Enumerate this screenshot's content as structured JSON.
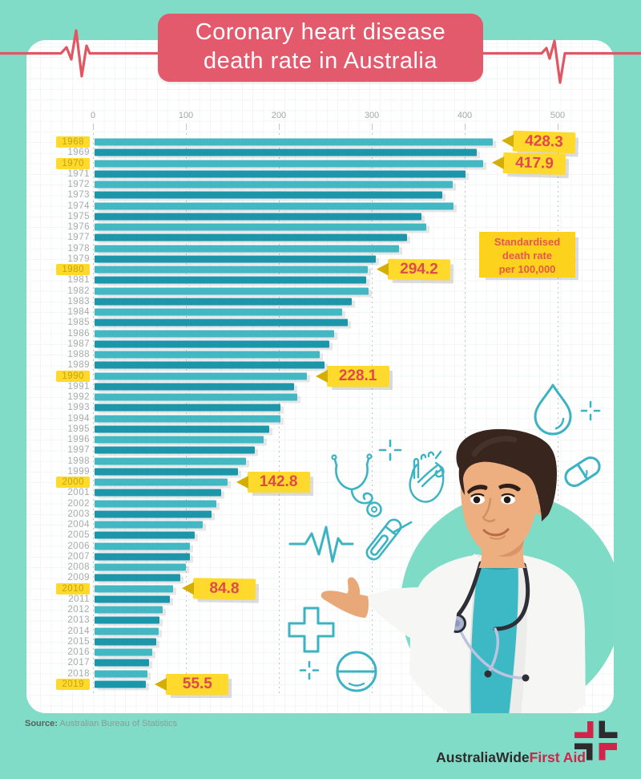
{
  "title": {
    "line1": "Coronary heart disease",
    "line2": "death rate in Australia"
  },
  "chart_data": {
    "type": "bar",
    "orientation": "horizontal",
    "title": "Coronary heart disease death rate in Australia",
    "value_label": "Standardised death rate per 100,000",
    "x_ticks": [
      0,
      100,
      200,
      300,
      400,
      500
    ],
    "xlim": [
      0,
      500
    ],
    "grid": "dashed-vertical",
    "categories": [
      1968,
      1969,
      1970,
      1971,
      1972,
      1973,
      1974,
      1975,
      1976,
      1977,
      1978,
      1979,
      1980,
      1981,
      1982,
      1983,
      1984,
      1985,
      1986,
      1987,
      1988,
      1989,
      1990,
      1991,
      1992,
      1993,
      1994,
      1995,
      1996,
      1997,
      1998,
      1999,
      2000,
      2001,
      2002,
      2003,
      2004,
      2005,
      2006,
      2007,
      2008,
      2009,
      2010,
      2011,
      2012,
      2013,
      2014,
      2015,
      2016,
      2017,
      2018,
      2019
    ],
    "values": [
      428.3,
      411,
      417.9,
      399,
      385,
      374,
      386,
      352,
      357,
      336,
      328,
      303,
      294.2,
      292,
      295,
      277,
      266,
      272,
      258,
      253,
      242,
      247,
      228.1,
      215,
      218,
      200,
      200,
      188,
      182,
      172,
      163,
      154,
      142.8,
      136,
      131,
      126,
      116,
      108,
      103,
      103,
      98,
      92,
      84.8,
      81,
      73,
      70,
      69,
      66,
      62,
      59,
      56.5,
      55.5
    ],
    "highlighted_years": [
      1968,
      1970,
      1980,
      1990,
      2000,
      2010,
      2019
    ],
    "callouts": [
      {
        "year": 1968,
        "label": "428.3"
      },
      {
        "year": 1970,
        "label": "417.9"
      },
      {
        "year": 1980,
        "label": "294.2"
      },
      {
        "year": 1990,
        "label": "228.1"
      },
      {
        "year": 2000,
        "label": "142.8"
      },
      {
        "year": 2010,
        "label": "84.8"
      },
      {
        "year": 2019,
        "label": "55.5"
      }
    ]
  },
  "note": {
    "line1": "Standardised",
    "line2": "death rate",
    "line3": "per 100,000"
  },
  "source": {
    "prefix": "Source:",
    "text": " Australian Bureau of Statistics"
  },
  "logo": {
    "part1": "AustraliaWide",
    "part2": "First Aid"
  },
  "icons": [
    "water-drop-icon",
    "sparkle-plus-icon",
    "pill-capsule-icon",
    "anatomical-heart-icon",
    "stethoscope-icon",
    "heartbeat-line-icon",
    "test-tube-icon",
    "medical-cross-icon",
    "crosshair-icon",
    "tablet-icon",
    "doctor-illustration",
    "heartbeat-ecg-banner",
    "first-aid-cross-logo"
  ],
  "colors": {
    "background": "#80dcc7",
    "card": "#ffffff",
    "title_bg": "#e25a6c",
    "ekg_line": "#e25663",
    "bar_light": "#44b8c2",
    "bar_dark": "#1d96a9",
    "highlight_yellow": "#ffd92b",
    "callout_text": "#e0484f",
    "note_text": "#e5584a",
    "icon_teal": "#3bb3c3",
    "logo_red": "#d2234a",
    "logo_dark": "#2e2b2c"
  }
}
